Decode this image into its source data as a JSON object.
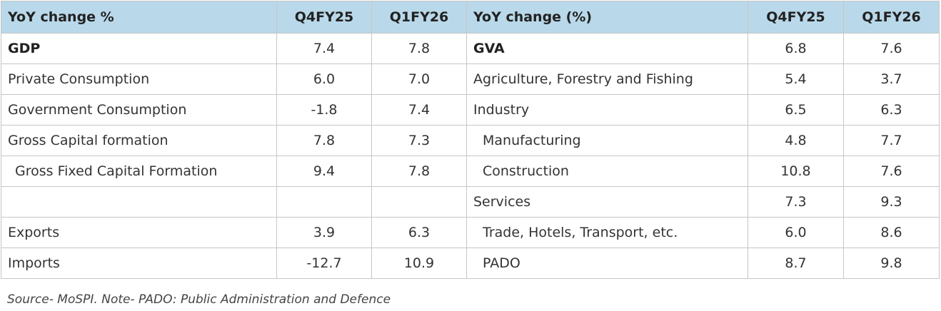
{
  "header": {
    "left_label": "YoY change %",
    "left_q1": "Q4FY25",
    "left_q2": "Q1FY26",
    "right_label": "YoY change (%)",
    "right_q1": "Q4FY25",
    "right_q2": "Q1FY26"
  },
  "rows": [
    {
      "l_label": "GDP",
      "l_q4": "7.4",
      "l_q1": "7.8",
      "r_label": "GVA",
      "r_q4": "6.8",
      "r_q1": "7.6"
    },
    {
      "l_label": "Private Consumption",
      "l_q4": "6.0",
      "l_q1": "7.0",
      "r_label": "Agriculture, Forestry and Fishing",
      "r_q4": "5.4",
      "r_q1": "3.7"
    },
    {
      "l_label": "Government Consumption",
      "l_q4": "-1.8",
      "l_q1": "7.4",
      "r_label": "Industry",
      "r_q4": "6.5",
      "r_q1": "6.3"
    },
    {
      "l_label": "Gross Capital formation",
      "l_q4": "7.8",
      "l_q1": "7.3",
      "r_label": "Manufacturing",
      "r_q4": "4.8",
      "r_q1": "7.7"
    },
    {
      "l_label": "Gross Fixed Capital Formation",
      "l_q4": "9.4",
      "l_q1": "7.8",
      "r_label": "Construction",
      "r_q4": "10.8",
      "r_q1": "7.6"
    },
    {
      "l_label": "",
      "l_q4": "",
      "l_q1": "",
      "r_label": "Services",
      "r_q4": "7.3",
      "r_q1": "9.3"
    },
    {
      "l_label": "Exports",
      "l_q4": "3.9",
      "l_q1": "6.3",
      "r_label": "Trade, Hotels, Transport, etc.",
      "r_q4": "6.0",
      "r_q1": "8.6"
    },
    {
      "l_label": "Imports",
      "l_q4": "-12.7",
      "l_q1": "10.9",
      "r_label": "PADO",
      "r_q4": "8.7",
      "r_q1": "9.8"
    }
  ],
  "footer": {
    "source": "Source- MoSPI. Note- PADO: Public Administration and Defence"
  }
}
